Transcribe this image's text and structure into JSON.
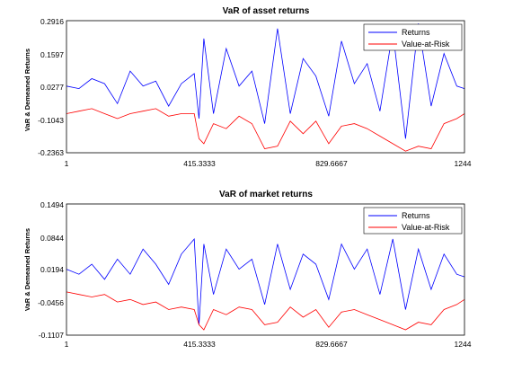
{
  "chart_data": [
    {
      "type": "line",
      "title": "VaR of asset returns",
      "xlabel": "",
      "ylabel": "VaR & Demeaned Returns",
      "xlim": [
        1,
        1244
      ],
      "ylim": [
        -0.2363,
        0.2916
      ],
      "x_ticks": [
        "1",
        "415.3333",
        "829.6667",
        "1244"
      ],
      "y_ticks": [
        "0.2916",
        "0.1597",
        "0.0277",
        "-0.1043",
        "-0.2363"
      ],
      "legend": {
        "placement": "top-right",
        "entries": [
          "Returns",
          "Value-at-Risk"
        ]
      },
      "series": [
        {
          "name": "Returns",
          "color": "#0000ff",
          "x": [
            1,
            40,
            80,
            120,
            160,
            200,
            240,
            280,
            320,
            360,
            400,
            415,
            430,
            460,
            500,
            540,
            580,
            620,
            660,
            700,
            740,
            780,
            820,
            860,
            900,
            940,
            980,
            1020,
            1060,
            1100,
            1140,
            1180,
            1220,
            1244
          ],
          "values": [
            0.03,
            0.02,
            0.06,
            0.04,
            -0.04,
            0.09,
            0.03,
            0.05,
            -0.05,
            0.04,
            0.08,
            -0.1,
            0.22,
            -0.08,
            0.18,
            0.03,
            0.09,
            -0.12,
            0.26,
            -0.08,
            0.14,
            0.07,
            -0.09,
            0.21,
            0.04,
            0.12,
            -0.07,
            0.25,
            -0.18,
            0.28,
            -0.05,
            0.16,
            0.03,
            0.02
          ]
        },
        {
          "name": "Value-at-Risk",
          "color": "#ff0000",
          "x": [
            1,
            40,
            80,
            120,
            160,
            200,
            240,
            280,
            320,
            360,
            400,
            415,
            430,
            460,
            500,
            540,
            580,
            620,
            660,
            700,
            740,
            780,
            820,
            860,
            900,
            940,
            980,
            1020,
            1060,
            1100,
            1140,
            1180,
            1220,
            1244
          ],
          "values": [
            -0.08,
            -0.07,
            -0.06,
            -0.08,
            -0.1,
            -0.08,
            -0.07,
            -0.06,
            -0.09,
            -0.08,
            -0.08,
            -0.18,
            -0.2,
            -0.12,
            -0.14,
            -0.09,
            -0.12,
            -0.22,
            -0.21,
            -0.11,
            -0.16,
            -0.11,
            -0.2,
            -0.13,
            -0.12,
            -0.14,
            -0.17,
            -0.2,
            -0.23,
            -0.21,
            -0.22,
            -0.12,
            -0.1,
            -0.08
          ]
        }
      ]
    },
    {
      "type": "line",
      "title": "VaR of market returns",
      "xlabel": "",
      "ylabel": "VaR & Demeaned Returns",
      "xlim": [
        1,
        1244
      ],
      "ylim": [
        -0.1107,
        0.1494
      ],
      "x_ticks": [
        "1",
        "415.3333",
        "829.6667",
        "1244"
      ],
      "y_ticks": [
        "0.1494",
        "0.0844",
        "0.0194",
        "-0.0456",
        "-0.1107"
      ],
      "legend": {
        "placement": "top-right",
        "entries": [
          "Returns",
          "Value-at-Risk"
        ]
      },
      "series": [
        {
          "name": "Returns",
          "color": "#0000ff",
          "x": [
            1,
            40,
            80,
            120,
            160,
            200,
            240,
            280,
            320,
            360,
            400,
            415,
            430,
            460,
            500,
            540,
            580,
            620,
            660,
            700,
            740,
            780,
            820,
            860,
            900,
            940,
            980,
            1020,
            1060,
            1100,
            1140,
            1180,
            1220,
            1244
          ],
          "values": [
            0.02,
            0.01,
            0.03,
            0.0,
            0.04,
            0.01,
            0.06,
            0.03,
            -0.01,
            0.05,
            0.08,
            -0.09,
            0.07,
            -0.03,
            0.06,
            0.02,
            0.04,
            -0.05,
            0.07,
            -0.02,
            0.05,
            0.03,
            -0.04,
            0.07,
            0.02,
            0.06,
            -0.03,
            0.08,
            -0.06,
            0.06,
            -0.02,
            0.05,
            0.01,
            0.005
          ]
        },
        {
          "name": "Value-at-Risk",
          "color": "#ff0000",
          "x": [
            1,
            40,
            80,
            120,
            160,
            200,
            240,
            280,
            320,
            360,
            400,
            415,
            430,
            460,
            500,
            540,
            580,
            620,
            660,
            700,
            740,
            780,
            820,
            860,
            900,
            940,
            980,
            1020,
            1060,
            1100,
            1140,
            1180,
            1220,
            1244
          ],
          "values": [
            -0.025,
            -0.03,
            -0.035,
            -0.03,
            -0.045,
            -0.04,
            -0.05,
            -0.045,
            -0.06,
            -0.055,
            -0.06,
            -0.09,
            -0.1,
            -0.06,
            -0.07,
            -0.055,
            -0.06,
            -0.09,
            -0.085,
            -0.055,
            -0.075,
            -0.06,
            -0.095,
            -0.065,
            -0.06,
            -0.07,
            -0.08,
            -0.09,
            -0.1,
            -0.085,
            -0.09,
            -0.06,
            -0.05,
            -0.04
          ]
        }
      ]
    }
  ]
}
